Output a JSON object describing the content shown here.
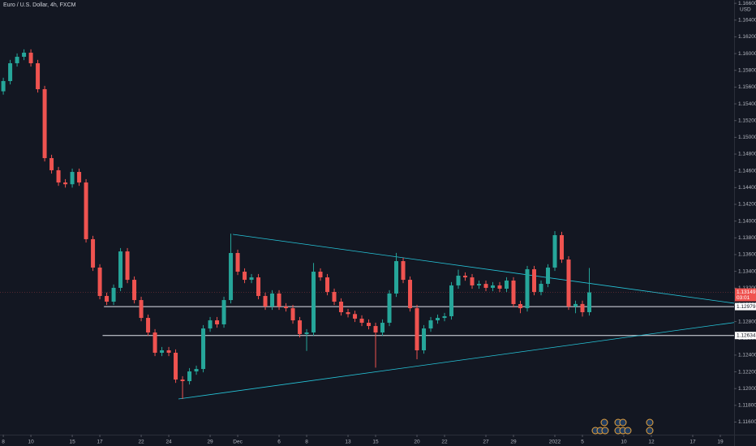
{
  "chart_data": {
    "type": "candlestick",
    "title": "Euro / U.S. Dollar, 4h, FXCM",
    "y_axis_label": "USD",
    "up_color": "#26a69a",
    "down_color": "#ef5350",
    "xlim": [
      -0.24,
      53
    ],
    "ylim": [
      1.1145,
      1.1664
    ],
    "xticks": [
      {
        "value": 0,
        "label": "8"
      },
      {
        "value": 2,
        "label": "10"
      },
      {
        "value": 5,
        "label": "15"
      },
      {
        "value": 7,
        "label": "17"
      },
      {
        "value": 10,
        "label": "22"
      },
      {
        "value": 12,
        "label": "24"
      },
      {
        "value": 15,
        "label": "29"
      },
      {
        "value": 17,
        "label": "Dec"
      },
      {
        "value": 20,
        "label": "6"
      },
      {
        "value": 22,
        "label": "8"
      },
      {
        "value": 25,
        "label": "13"
      },
      {
        "value": 27,
        "label": "15"
      },
      {
        "value": 30,
        "label": "20"
      },
      {
        "value": 32,
        "label": "22"
      },
      {
        "value": 35,
        "label": "27"
      },
      {
        "value": 37,
        "label": "29"
      },
      {
        "value": 40,
        "label": "2022"
      },
      {
        "value": 42,
        "label": "5"
      },
      {
        "value": 45,
        "label": "10"
      },
      {
        "value": 47,
        "label": "12"
      },
      {
        "value": 50,
        "label": "17"
      },
      {
        "value": 52,
        "label": "19"
      }
    ],
    "yticks": [
      {
        "value": 1.116,
        "label": "1.11600"
      },
      {
        "value": 1.118,
        "label": "1.11800"
      },
      {
        "value": 1.12,
        "label": "1.12000"
      },
      {
        "value": 1.122,
        "label": "1.12200"
      },
      {
        "value": 1.124,
        "label": "1.12400"
      },
      {
        "value": 1.126,
        "label": "1.12600"
      },
      {
        "value": 1.128,
        "label": "1.12800"
      },
      {
        "value": 1.13,
        "label": "1.13000"
      },
      {
        "value": 1.132,
        "label": "1.13200"
      },
      {
        "value": 1.134,
        "label": "1.13400"
      },
      {
        "value": 1.136,
        "label": "1.13600"
      },
      {
        "value": 1.138,
        "label": "1.13800"
      },
      {
        "value": 1.14,
        "label": "1.14000"
      },
      {
        "value": 1.142,
        "label": "1.14200"
      },
      {
        "value": 1.144,
        "label": "1.14400"
      },
      {
        "value": 1.146,
        "label": "1.14600"
      },
      {
        "value": 1.148,
        "label": "1.14800"
      },
      {
        "value": 1.15,
        "label": "1.15000"
      },
      {
        "value": 1.152,
        "label": "1.15200"
      },
      {
        "value": 1.154,
        "label": "1.15400"
      },
      {
        "value": 1.156,
        "label": "1.15600"
      },
      {
        "value": 1.158,
        "label": "1.15800"
      },
      {
        "value": 1.16,
        "label": "1.16000"
      },
      {
        "value": 1.162,
        "label": "1.16200"
      },
      {
        "value": 1.164,
        "label": "1.16400"
      },
      {
        "value": 1.166,
        "label": "1.16600"
      }
    ],
    "x": [
      0,
      0.5,
      1,
      1.5,
      2,
      2.5,
      3,
      3.5,
      4,
      4.5,
      5,
      5.5,
      6,
      6.5,
      7,
      7.5,
      8,
      8.5,
      9,
      9.5,
      10,
      10.5,
      11,
      11.5,
      12,
      12.5,
      13,
      13.5,
      14,
      14.5,
      15,
      15.5,
      16,
      16.5,
      17,
      17.5,
      18,
      18.5,
      19,
      19.5,
      20,
      20.5,
      21,
      21.5,
      22,
      22.5,
      23,
      23.5,
      24,
      24.5,
      25,
      25.5,
      26,
      26.5,
      27,
      27.5,
      28,
      28.5,
      29,
      29.5,
      30,
      30.5,
      31,
      31.5,
      32,
      32.5,
      33,
      33.5,
      34,
      34.5,
      35,
      35.5,
      36,
      36.5,
      37,
      37.5,
      38,
      38.5,
      39,
      39.5,
      40,
      40.5,
      41,
      41.5,
      42,
      42.5
    ],
    "open": [
      1.1555,
      1.15672,
      1.15885,
      1.15962,
      1.16011,
      1.15885,
      1.15575,
      1.14752,
      1.14607,
      1.14461,
      1.1444,
      1.14587,
      1.14461,
      1.13784,
      1.13445,
      1.13106,
      1.13038,
      1.13203,
      1.13638,
      1.13299,
      1.13057,
      1.12844,
      1.1267,
      1.12428,
      1.12457,
      1.12428,
      1.12108,
      1.12089,
      1.12205,
      1.12234,
      1.12718,
      1.12815,
      1.12767,
      1.13057,
      1.13619,
      1.13396,
      1.13299,
      1.13328,
      1.13106,
      1.1298,
      1.13135,
      1.1298,
      1.1296,
      1.12815,
      1.12651,
      1.1267,
      1.13396,
      1.13328,
      1.13154,
      1.13038,
      1.12912,
      1.1289,
      1.12835,
      1.12786,
      1.12747,
      1.1267,
      1.12786,
      1.13135,
      1.13522,
      1.13299,
      1.1296,
      1.12457,
      1.12718,
      1.12815,
      1.12844,
      1.12864,
      1.13232,
      1.13348,
      1.13328,
      1.13232,
      1.1325,
      1.13203,
      1.13232,
      1.13193,
      1.1329,
      1.13009,
      1.1296,
      1.13425,
      1.13154,
      1.13251,
      1.13445,
      1.13832,
      1.13541,
      1.1298,
      1.1301,
      1.12912
    ],
    "high": [
      1.15712,
      1.15925,
      1.16002,
      1.16051,
      1.16051,
      1.15925,
      1.15615,
      1.14792,
      1.14647,
      1.14501,
      1.14627,
      1.14627,
      1.14501,
      1.13824,
      1.13485,
      1.13146,
      1.13243,
      1.13678,
      1.13678,
      1.13339,
      1.13097,
      1.12884,
      1.1271,
      1.12497,
      1.12497,
      1.12468,
      1.12148,
      1.12245,
      1.12274,
      1.12758,
      1.12855,
      1.12855,
      1.13097,
      1.1385,
      1.13659,
      1.13436,
      1.13368,
      1.13368,
      1.13146,
      1.13175,
      1.13175,
      1.1302,
      1.13,
      1.12855,
      1.1271,
      1.135,
      1.13436,
      1.13368,
      1.13194,
      1.13078,
      1.12952,
      1.1293,
      1.12875,
      1.12826,
      1.12787,
      1.12826,
      1.13175,
      1.1362,
      1.13562,
      1.13339,
      1.13,
      1.12758,
      1.12855,
      1.12884,
      1.12904,
      1.13272,
      1.1342,
      1.13388,
      1.13368,
      1.1329,
      1.1329,
      1.13272,
      1.13272,
      1.1333,
      1.1333,
      1.13049,
      1.13465,
      1.13465,
      1.13291,
      1.13485,
      1.1388,
      1.13872,
      1.13581,
      1.1305,
      1.1305,
      1.1344
    ],
    "low": [
      1.1551,
      1.15632,
      1.15845,
      1.15922,
      1.15845,
      1.15535,
      1.14712,
      1.14567,
      1.14421,
      1.144,
      1.144,
      1.14421,
      1.13744,
      1.13405,
      1.13066,
      1.12998,
      1.12998,
      1.13163,
      1.13259,
      1.13017,
      1.12804,
      1.1263,
      1.12388,
      1.12388,
      1.12388,
      1.12068,
      1.11876,
      1.12049,
      1.12165,
      1.12194,
      1.12678,
      1.12727,
      1.12727,
      1.13017,
      1.13356,
      1.13259,
      1.13259,
      1.13066,
      1.1294,
      1.1294,
      1.1294,
      1.1292,
      1.12775,
      1.12611,
      1.1245,
      1.1263,
      1.13288,
      1.13114,
      1.12998,
      1.12872,
      1.1285,
      1.12795,
      1.12746,
      1.12707,
      1.1225,
      1.1263,
      1.12746,
      1.13095,
      1.13259,
      1.1292,
      1.1235,
      1.12417,
      1.12678,
      1.12775,
      1.12804,
      1.12824,
      1.13192,
      1.13288,
      1.13192,
      1.13192,
      1.13163,
      1.13163,
      1.13153,
      1.13153,
      1.12969,
      1.129,
      1.1292,
      1.13114,
      1.13114,
      1.13211,
      1.13405,
      1.13501,
      1.1294,
      1.129,
      1.1286,
      1.12872
    ],
    "close": [
      1.15672,
      1.15885,
      1.15962,
      1.16011,
      1.15885,
      1.15575,
      1.14752,
      1.14607,
      1.14461,
      1.1444,
      1.14587,
      1.14461,
      1.13784,
      1.13445,
      1.13106,
      1.13038,
      1.13203,
      1.13638,
      1.13299,
      1.13057,
      1.12844,
      1.1267,
      1.12428,
      1.12457,
      1.12428,
      1.12108,
      1.12089,
      1.12205,
      1.12234,
      1.12718,
      1.12815,
      1.12767,
      1.13057,
      1.13619,
      1.13396,
      1.13299,
      1.13328,
      1.13106,
      1.1298,
      1.13135,
      1.1298,
      1.1296,
      1.12815,
      1.12651,
      1.1267,
      1.13396,
      1.13328,
      1.13154,
      1.13038,
      1.12912,
      1.1289,
      1.12835,
      1.12786,
      1.12747,
      1.1267,
      1.12786,
      1.13135,
      1.13522,
      1.13299,
      1.1296,
      1.12457,
      1.12718,
      1.12815,
      1.12844,
      1.12864,
      1.13232,
      1.13348,
      1.13328,
      1.13232,
      1.1325,
      1.13203,
      1.13232,
      1.13193,
      1.1329,
      1.13009,
      1.1296,
      1.13425,
      1.13154,
      1.13251,
      1.13445,
      1.13832,
      1.13541,
      1.1298,
      1.1301,
      1.12912,
      1.13149
    ],
    "levels": [
      {
        "value": 1.12979,
        "from": 7.3
      },
      {
        "value": 1.12634,
        "from": 7.2
      }
    ],
    "trendlines": [
      {
        "x": [
          16.65,
          53
        ],
        "y": [
          1.13842,
          1.13019
        ]
      },
      {
        "x": [
          12.7,
          53
        ],
        "y": [
          1.11876,
          1.12789
        ]
      }
    ],
    "last_price": 1.13149,
    "countdown": "03:01"
  }
}
